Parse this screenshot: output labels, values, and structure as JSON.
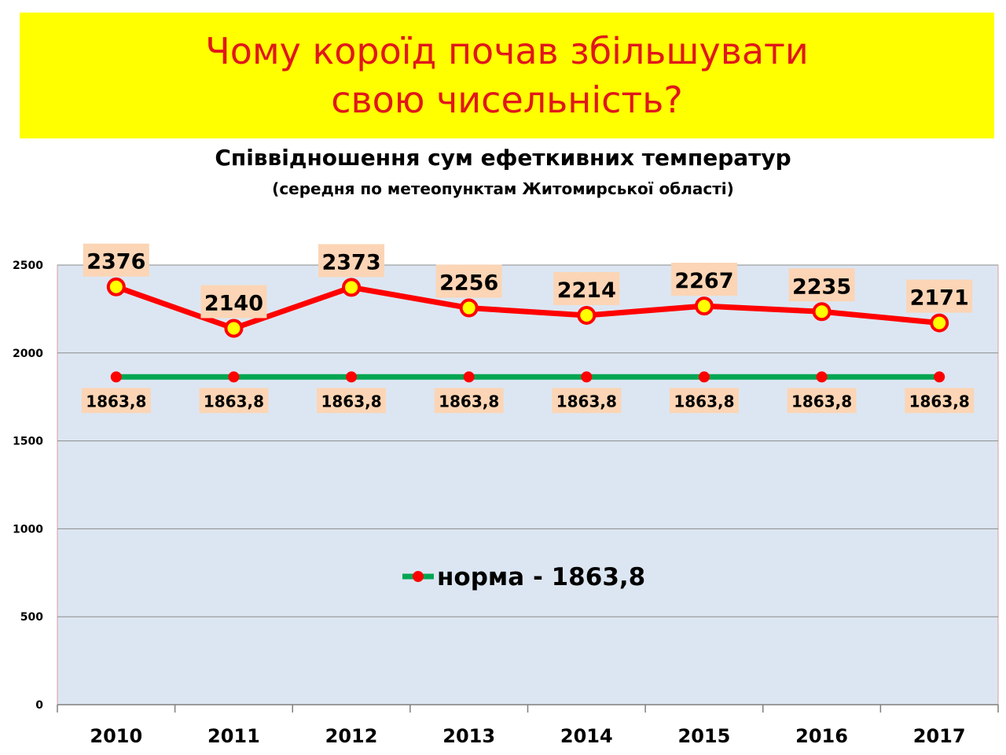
{
  "banner": {
    "line1": "Чому короїд почав збільшувати",
    "line2": "свою чисельність?"
  },
  "colors": {
    "banner_bg": "#ffff00",
    "banner_text": "#e0181a",
    "plot_bg": "#dce6f2",
    "temp_line": "#ff0000",
    "temp_marker_fill": "#ffff00",
    "norm_line": "#00a651",
    "norm_marker": "#ff0000",
    "label_bg": "#fbd5b5"
  },
  "chart_data": {
    "type": "line",
    "title": "Співвідношення сум ефеткивних температур",
    "subtitle": "(середня по метеопунктам Житомирської області)",
    "categories": [
      "2010",
      "2011",
      "2012",
      "2013",
      "2014",
      "2015",
      "2016",
      "2017"
    ],
    "series": [
      {
        "values": [
          2376,
          2140,
          2373,
          2256,
          2214,
          2267,
          2235,
          2171
        ],
        "labels": [
          "2376",
          "2140",
          "2373",
          "2256",
          "2214",
          "2267",
          "2235",
          "2171"
        ]
      },
      {
        "name": "норма - 1863,8",
        "values": [
          1863.8,
          1863.8,
          1863.8,
          1863.8,
          1863.8,
          1863.8,
          1863.8,
          1863.8
        ],
        "labels": [
          "1863,8",
          "1863,8",
          "1863,8",
          "1863,8",
          "1863,8",
          "1863,8",
          "1863,8",
          "1863,8"
        ]
      }
    ],
    "ylim": [
      0,
      2500
    ],
    "yticks": [
      "0",
      "500",
      "1000",
      "1500",
      "2000",
      "2500"
    ],
    "grid": true,
    "legend_position": "center"
  }
}
